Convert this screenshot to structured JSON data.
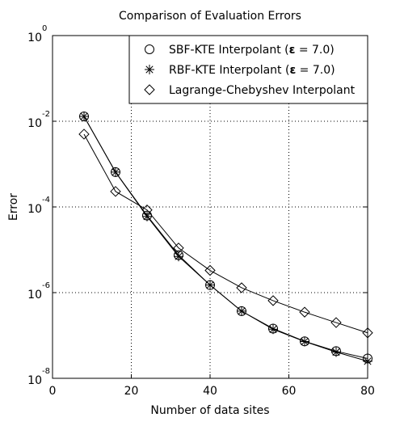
{
  "chart_data": {
    "type": "line",
    "title": "Comparison of Evaluation Errors",
    "xlabel": "Number of data sites",
    "ylabel": "Error",
    "xlim": [
      0,
      80
    ],
    "ylim": [
      1e-08,
      1
    ],
    "yscale": "log",
    "grid": true,
    "legend_position": "top-right",
    "xticks": [
      0,
      20,
      40,
      60,
      80
    ],
    "xtick_labels": [
      "0",
      "20",
      "40",
      "60",
      "80"
    ],
    "yticks": [
      {
        "value": 1e-08,
        "base": "10",
        "exp": "-8"
      },
      {
        "value": 1e-06,
        "base": "10",
        "exp": "-6"
      },
      {
        "value": 0.0001,
        "base": "10",
        "exp": "-4"
      },
      {
        "value": 0.01,
        "base": "10",
        "exp": "-2"
      },
      {
        "value": 1,
        "base": "10",
        "exp": "0"
      }
    ],
    "x": [
      8,
      16,
      24,
      32,
      40,
      48,
      56,
      64,
      72,
      80
    ],
    "series": [
      {
        "name_prefix": "SBF-KTE Interpolant (",
        "name_eps": "ε",
        "name_suffix": " = 7.0)",
        "marker": "circle",
        "values": [
          0.013,
          0.00065,
          6.3e-05,
          7.5e-06,
          1.5e-06,
          3.7e-07,
          1.45e-07,
          7.3e-08,
          4.3e-08,
          2.9e-08
        ]
      },
      {
        "name_prefix": "RBF-KTE Interpolant (",
        "name_eps": "ε",
        "name_suffix": " = 7.0)",
        "marker": "star",
        "values": [
          0.013,
          0.00065,
          6e-05,
          7e-06,
          1.5e-06,
          3.7e-07,
          1.4e-07,
          7.2e-08,
          4.1e-08,
          2.5e-08
        ]
      },
      {
        "name_prefix": "Lagrange-Chebyshev Interpolant",
        "name_eps": "",
        "name_suffix": "",
        "marker": "diamond",
        "values": [
          0.005,
          0.00023,
          8.5e-05,
          1.1e-05,
          3.3e-06,
          1.3e-06,
          6.5e-07,
          3.5e-07,
          2e-07,
          1.15e-07
        ]
      }
    ]
  }
}
